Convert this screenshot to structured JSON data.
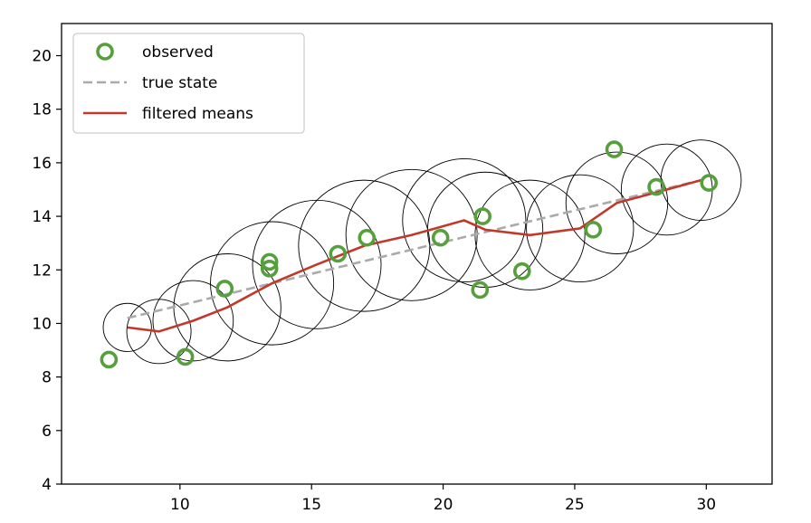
{
  "chart_data": {
    "type": "line",
    "xlim": [
      5.5,
      32.5
    ],
    "ylim": [
      4,
      21.2
    ],
    "xticks": [
      10,
      15,
      20,
      25,
      30
    ],
    "yticks": [
      4,
      6,
      8,
      10,
      12,
      14,
      16,
      18,
      20
    ],
    "grid": false,
    "legend_placement": "top-left",
    "series": [
      {
        "name": "observed",
        "style": "markers",
        "color": "#55a03c",
        "x": [
          7.3,
          10.2,
          11.7,
          13.4,
          13.4,
          16.0,
          17.1,
          19.9,
          21.4,
          21.5,
          23.0,
          25.7,
          26.5,
          28.1,
          30.1
        ],
        "y": [
          8.65,
          8.75,
          11.3,
          12.3,
          12.05,
          12.6,
          13.2,
          13.2,
          11.25,
          14.0,
          11.95,
          13.5,
          16.5,
          15.1,
          15.25
        ]
      },
      {
        "name": "true state",
        "style": "dashed",
        "color": "#aaaaaa",
        "x": [
          8.0,
          29.8
        ],
        "y": [
          10.2,
          15.35
        ]
      },
      {
        "name": "filtered means",
        "style": "solid",
        "color": "#c0392b",
        "x": [
          8.0,
          9.2,
          10.5,
          11.8,
          13.5,
          15.2,
          17.0,
          18.8,
          20.8,
          21.6,
          23.3,
          25.2,
          26.6,
          28.5,
          29.8
        ],
        "y": [
          9.85,
          9.7,
          10.1,
          10.6,
          11.5,
          12.2,
          12.9,
          13.3,
          13.85,
          13.5,
          13.3,
          13.55,
          14.5,
          15.0,
          15.35
        ]
      }
    ],
    "uncertainty_circles": {
      "color": "#000000",
      "centers_x": [
        8.0,
        9.2,
        10.5,
        11.8,
        13.5,
        15.2,
        17.0,
        18.8,
        20.8,
        21.6,
        23.3,
        25.2,
        26.6,
        28.5,
        29.8
      ],
      "centers_y": [
        9.85,
        9.7,
        10.1,
        10.6,
        11.5,
        12.2,
        12.9,
        13.3,
        13.85,
        13.5,
        13.3,
        13.55,
        14.5,
        15.0,
        15.35
      ],
      "radii": [
        0.9,
        1.2,
        1.5,
        2.0,
        2.3,
        2.4,
        2.45,
        2.45,
        2.3,
        2.15,
        2.05,
        2.0,
        1.9,
        1.7,
        1.5
      ]
    }
  }
}
